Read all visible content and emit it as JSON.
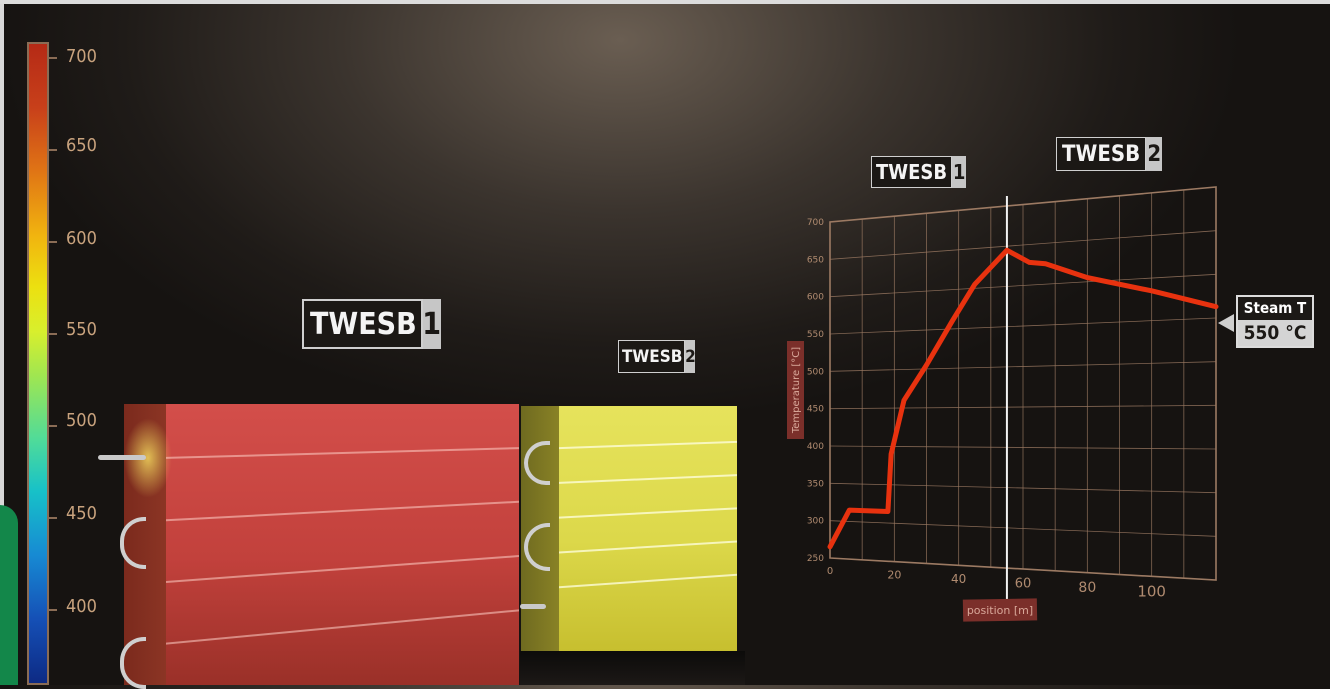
{
  "colors": {
    "background": "#2a2420",
    "curve": "#e8320f",
    "grid": "#9c7a63",
    "axis_text": "#b08b70",
    "tank1": "#c2413c",
    "tank2": "#dcd84a"
  },
  "color_scale": {
    "ticks": [
      "700",
      "650",
      "600",
      "550",
      "500",
      "450",
      "400"
    ]
  },
  "labels": {
    "tank1_text": "TWESB",
    "tank1_num": "1",
    "tank2_text": "TWESB",
    "tank2_num": "2",
    "chart1_text": "TWESB",
    "chart1_num": "1",
    "chart2_text": "TWESB",
    "chart2_num": "2"
  },
  "steam_indicator": {
    "title": "Steam T",
    "value": "550 °C"
  },
  "chart_data": {
    "type": "line",
    "xlabel": "position [m]",
    "ylabel": "Temperature [°C]",
    "xlim": [
      0,
      120
    ],
    "ylim": [
      250,
      700
    ],
    "x_ticks": [
      "0",
      "20",
      "40",
      "60",
      "80",
      "100"
    ],
    "y_ticks": [
      "250",
      "300",
      "350",
      "400",
      "450",
      "500",
      "550",
      "600",
      "650",
      "700"
    ],
    "grid": true,
    "divider_x": 55,
    "series": [
      {
        "x": [
          0,
          6,
          18,
          19,
          23,
          30,
          38,
          45,
          55,
          62,
          67,
          80,
          100,
          120
        ],
        "y": [
          265,
          315,
          315,
          390,
          460,
          505,
          560,
          605,
          645,
          628,
          625,
          605,
          585,
          563
        ]
      }
    ]
  }
}
